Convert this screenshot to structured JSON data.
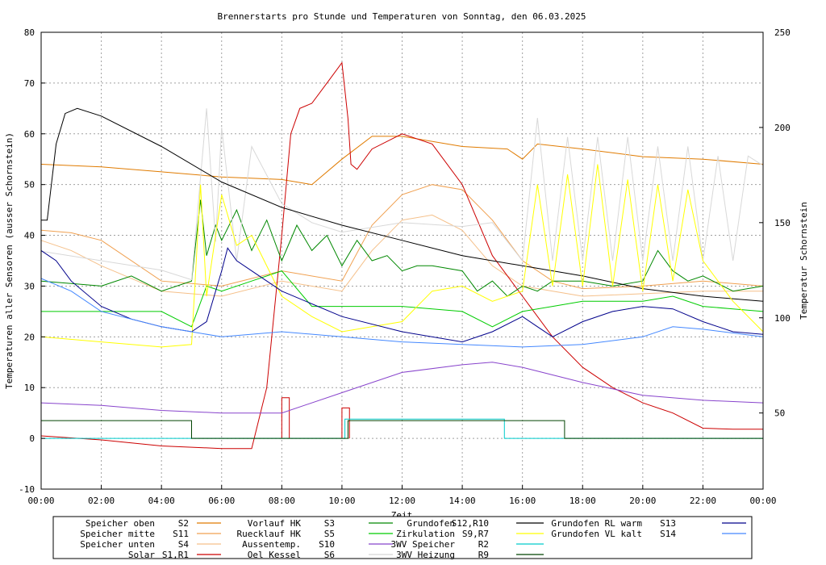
{
  "chart_data": {
    "type": "line",
    "title": "Brennerstarts pro Stunde und Temperaturen von Sonntag, den 06.03.2025",
    "xlabel": "Zeit",
    "ylabel": "Temperaturen aller Sensoren (ausser Schornstein)",
    "y2label": "Temperatur Schornstein",
    "y2label_color": "#ff00ff",
    "xlim": [
      0,
      24
    ],
    "ylim": [
      -10,
      80
    ],
    "y2lim": [
      10,
      250
    ],
    "grid": true,
    "x_ticks": [
      "00:00",
      "02:00",
      "04:00",
      "06:00",
      "08:00",
      "10:00",
      "12:00",
      "14:00",
      "16:00",
      "18:00",
      "20:00",
      "22:00",
      "00:00"
    ],
    "y_ticks": [
      "-10",
      "0",
      "10",
      "20",
      "30",
      "40",
      "50",
      "60",
      "70",
      "80"
    ],
    "y2_ticks": [
      "50",
      "100",
      "150",
      "200",
      "250"
    ],
    "legend_position": "bottom",
    "series": [
      {
        "name": "Speicher oben",
        "code": "S2",
        "color": "#e07b00",
        "axis": "left",
        "x": [
          0,
          2,
          4,
          6,
          8,
          9,
          10,
          11,
          12,
          14,
          15.5,
          16,
          16.5,
          18,
          20,
          22,
          24
        ],
        "y": [
          54,
          53.5,
          52.5,
          51.5,
          51,
          50,
          55,
          59.5,
          59.5,
          57.5,
          57,
          55,
          58,
          57,
          55.5,
          55,
          54
        ]
      },
      {
        "name": "Speicher mitte",
        "code": "S11",
        "color": "#f0a050",
        "axis": "left",
        "x": [
          0,
          1,
          2,
          4,
          6,
          8,
          10,
          11,
          12,
          13,
          14,
          15,
          16,
          17,
          18,
          20,
          22,
          24
        ],
        "y": [
          41,
          40.5,
          39,
          31,
          30,
          33,
          31,
          42,
          48,
          50,
          49,
          43,
          35,
          31,
          29.5,
          30,
          31,
          30
        ]
      },
      {
        "name": "Speicher unten",
        "code": "S4",
        "color": "#f5c08a",
        "axis": "left",
        "x": [
          0,
          1,
          2,
          4,
          6,
          8,
          10,
          11,
          12,
          13,
          14,
          15,
          16,
          18,
          20,
          22,
          24
        ],
        "y": [
          39,
          37,
          34,
          29,
          28,
          31,
          29,
          37,
          43,
          44,
          41,
          34,
          30,
          28,
          28.5,
          29,
          29
        ]
      },
      {
        "name": "Solar",
        "code": "S1,R1",
        "color": "#cc0000",
        "axis": "left",
        "x": [
          0,
          2,
          4,
          6,
          7,
          7.5,
          8,
          8.3,
          8.6,
          9,
          9.5,
          10,
          10.2,
          10.3,
          10.5,
          11,
          12,
          13,
          14,
          15,
          16,
          17,
          18,
          19,
          20,
          21,
          22,
          23,
          24
        ],
        "y": [
          0.5,
          -0.3,
          -1.5,
          -2,
          -2,
          10,
          40,
          60,
          65,
          66,
          70,
          74,
          63,
          54,
          53,
          57,
          60,
          58,
          50,
          36,
          28,
          20,
          14,
          10,
          7,
          5,
          2,
          1.8,
          1.8
        ]
      },
      {
        "name": "Vorlauf HK",
        "code": "S3",
        "color": "#008800",
        "axis": "left",
        "x": [
          0,
          1,
          2,
          3,
          4,
          5,
          5.3,
          5.5,
          5.8,
          6,
          6.5,
          7,
          7.5,
          8,
          8.5,
          9,
          9.5,
          10,
          10.5,
          11,
          11.5,
          12,
          12.5,
          13,
          14,
          14.5,
          15,
          15.5,
          16,
          16.5,
          17,
          18,
          19,
          20,
          20.5,
          21,
          21.5,
          22,
          23,
          24
        ],
        "y": [
          31,
          30.5,
          30,
          32,
          29,
          31,
          47,
          36,
          42,
          39,
          45,
          37,
          43,
          35,
          42,
          37,
          40,
          34,
          39,
          35,
          36,
          33,
          34,
          34,
          33,
          29,
          31,
          28,
          30,
          29,
          31,
          31,
          30,
          31,
          37,
          33,
          31,
          32,
          29,
          30
        ]
      },
      {
        "name": "Ruecklauf HK",
        "code": "S5",
        "color": "#00cc00",
        "axis": "left",
        "x": [
          0,
          2,
          4,
          5,
          5.5,
          6,
          7,
          8,
          9,
          10,
          12,
          14,
          15,
          16,
          17,
          18,
          20,
          21,
          22,
          23,
          24
        ],
        "y": [
          25,
          25,
          25,
          22,
          30,
          29,
          31,
          33,
          26,
          26,
          26,
          25,
          22,
          25,
          26,
          27,
          27,
          28,
          26,
          25.5,
          25
        ]
      },
      {
        "name": "Aussentemp.",
        "code": "S10",
        "color": "#8844cc",
        "axis": "left",
        "x": [
          0,
          2,
          4,
          6,
          8,
          10,
          12,
          14,
          15,
          16,
          17,
          18,
          20,
          22,
          24
        ],
        "y": [
          7,
          6.5,
          5.5,
          5,
          5,
          9,
          13,
          14.5,
          15,
          14,
          12.5,
          11,
          8.5,
          7.5,
          7
        ]
      },
      {
        "name": "Oel Kessel",
        "code": "S6",
        "color": "#d8d8d8",
        "axis": "right",
        "x": [
          0,
          2,
          4,
          5,
          5.5,
          5.8,
          6,
          6.5,
          7,
          8,
          9,
          10,
          12,
          14,
          15,
          16,
          16.5,
          17,
          17.5,
          18,
          18.5,
          19,
          19.5,
          20,
          20.5,
          21,
          21.5,
          22,
          22.5,
          23,
          23.5,
          24
        ],
        "y": [
          135,
          130,
          125,
          120,
          210,
          140,
          200,
          130,
          190,
          160,
          150,
          145,
          150,
          148,
          150,
          130,
          205,
          130,
          195,
          130,
          195,
          130,
          195,
          130,
          190,
          130,
          190,
          130,
          185,
          130,
          185,
          180
        ]
      },
      {
        "name": "Grundofen",
        "code": "S12,R10",
        "color": "#000000",
        "axis": "left",
        "x": [
          0,
          0.2,
          0.5,
          0.8,
          1.2,
          2,
          4,
          6,
          8,
          10,
          12,
          14,
          16,
          18,
          20,
          22,
          24
        ],
        "y": [
          43,
          43,
          58,
          64,
          65,
          63.5,
          57.5,
          50.5,
          45.5,
          42,
          39,
          36,
          34,
          32,
          29.5,
          28,
          27
        ]
      },
      {
        "name": "Zirkulation",
        "code": "S9,R7",
        "color": "#ffff00",
        "axis": "left",
        "x": [
          0,
          2,
          3,
          4,
          5,
          5.3,
          5.5,
          6,
          6.5,
          7,
          8,
          9,
          10,
          11,
          12,
          13,
          14,
          15,
          16,
          16.5,
          17,
          17.5,
          18,
          18.5,
          19,
          19.5,
          20,
          20.5,
          21,
          21.5,
          22,
          23,
          24
        ],
        "y": [
          20,
          19,
          18.5,
          18,
          18.5,
          50,
          28,
          48,
          38,
          40,
          28,
          24,
          21,
          22,
          23,
          29,
          30,
          27,
          29,
          50,
          30,
          52,
          30,
          54,
          30,
          51,
          29,
          50,
          31,
          49,
          35,
          27,
          21
        ]
      },
      {
        "name": "3WV Speicher",
        "code": "R2",
        "color": "#00cccc",
        "axis": "left",
        "x": [
          0,
          10.1,
          10.1,
          15.4,
          15.4,
          24
        ],
        "y": [
          0,
          0,
          3.8,
          3.8,
          0,
          0
        ]
      },
      {
        "name": "3WV Heizung",
        "code": "R9",
        "color": "#004400",
        "axis": "left",
        "x": [
          0,
          0,
          5,
          5,
          10.2,
          10.2,
          17.4,
          17.4,
          24
        ],
        "y": [
          0,
          3.5,
          3.5,
          0,
          0,
          3.5,
          3.5,
          0,
          0
        ]
      },
      {
        "name": "Grundofen RL warm",
        "code": "S13",
        "color": "#00008b",
        "axis": "left",
        "x": [
          0,
          0.5,
          1,
          2,
          3,
          4,
          5,
          5.5,
          6,
          6.2,
          6.5,
          7,
          8,
          10,
          12,
          14,
          15,
          16,
          16.5,
          17,
          18,
          19,
          20,
          21,
          22,
          23,
          24
        ],
        "y": [
          37,
          35,
          31,
          26,
          23.5,
          22,
          21,
          23,
          33,
          37.5,
          35,
          33,
          29,
          24,
          21,
          19,
          21,
          24,
          22,
          20,
          23,
          25,
          26,
          25.5,
          23,
          21,
          20.5
        ]
      },
      {
        "name": "Grundofen VL kalt",
        "code": "S14",
        "color": "#4488ff",
        "axis": "left",
        "x": [
          0,
          1,
          2,
          4,
          6,
          8,
          10,
          12,
          14,
          16,
          18,
          20,
          21,
          22,
          24
        ],
        "y": [
          31.5,
          29,
          25,
          22,
          20,
          21,
          20,
          19,
          18.5,
          18,
          18.5,
          20,
          22,
          21.5,
          20
        ]
      }
    ],
    "burner_starts": {
      "name": "Brennerstarts",
      "color": "#cc0000",
      "hours": [
        8,
        10
      ],
      "values": [
        8,
        6
      ]
    }
  }
}
